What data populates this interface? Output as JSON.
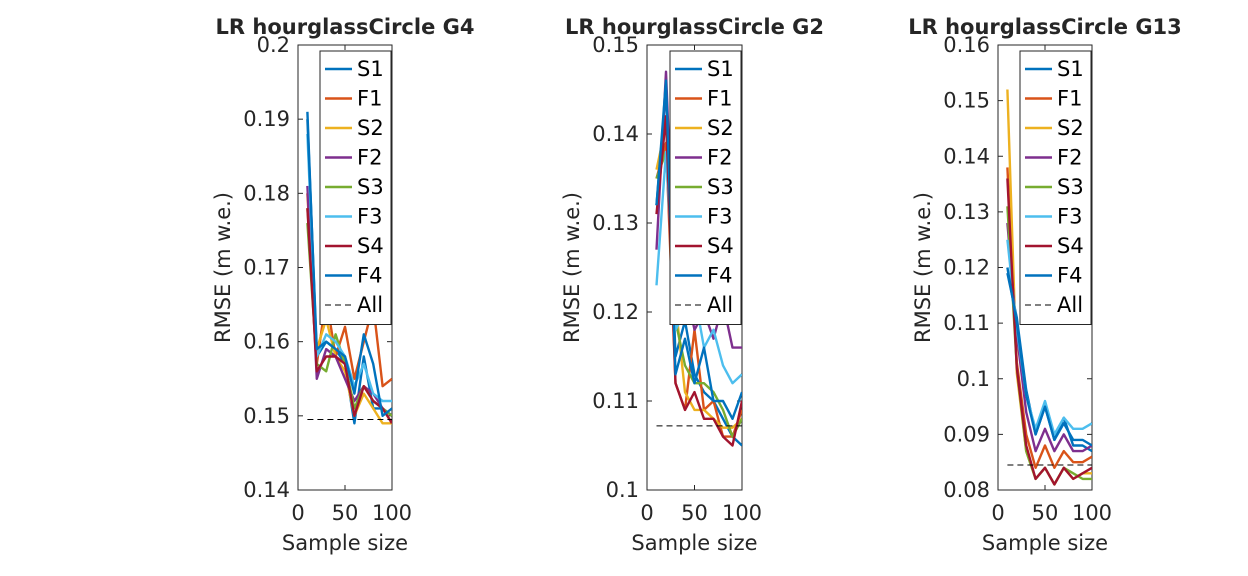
{
  "figure": {
    "background": "#ffffff"
  },
  "legend_entries": [
    {
      "label": "S1",
      "color": "#0072BD",
      "dashed": false
    },
    {
      "label": "F1",
      "color": "#D95319",
      "dashed": false
    },
    {
      "label": "S2",
      "color": "#EDB120",
      "dashed": false
    },
    {
      "label": "F2",
      "color": "#7E2F8E",
      "dashed": false
    },
    {
      "label": "S3",
      "color": "#77AC30",
      "dashed": false
    },
    {
      "label": "F3",
      "color": "#4DBEEE",
      "dashed": false
    },
    {
      "label": "S4",
      "color": "#A2142F",
      "dashed": false
    },
    {
      "label": "F4",
      "color": "#0072BD",
      "dashed": false
    },
    {
      "label": "All",
      "color": "#000000",
      "dashed": true
    }
  ],
  "chart_data": [
    {
      "type": "line",
      "title": "LR hourglassCircle G4",
      "xlabel": "Sample size",
      "ylabel": "RMSE (m w.e.)",
      "xlim": [
        0,
        100
      ],
      "ylim": [
        0.14,
        0.2
      ],
      "xticks": [
        0,
        50,
        100
      ],
      "xtick_labels": [
        "0",
        "50",
        "100"
      ],
      "yticks": [
        0.14,
        0.15,
        0.16,
        0.17,
        0.18,
        0.19,
        0.2
      ],
      "ytick_labels": [
        "0.14",
        "0.15",
        "0.16",
        "0.17",
        "0.18",
        "0.19",
        "0.2"
      ],
      "legend_position": "top-right",
      "x": [
        10,
        20,
        30,
        40,
        50,
        60,
        70,
        80,
        90,
        100
      ],
      "series": [
        {
          "name": "S1",
          "values": [
            0.191,
            0.158,
            0.16,
            0.159,
            0.157,
            0.149,
            0.158,
            0.151,
            0.151,
            0.15
          ]
        },
        {
          "name": "F1",
          "values": [
            0.18,
            0.157,
            0.166,
            0.158,
            0.162,
            0.155,
            0.16,
            0.165,
            0.154,
            0.155
          ]
        },
        {
          "name": "S2",
          "values": [
            0.178,
            0.159,
            0.163,
            0.158,
            0.156,
            0.15,
            0.153,
            0.151,
            0.149,
            0.149
          ]
        },
        {
          "name": "F2",
          "values": [
            0.181,
            0.155,
            0.159,
            0.158,
            0.155,
            0.152,
            0.154,
            0.153,
            0.151,
            0.15
          ]
        },
        {
          "name": "S3",
          "values": [
            0.176,
            0.157,
            0.156,
            0.161,
            0.157,
            0.151,
            0.154,
            0.152,
            0.151,
            0.15
          ]
        },
        {
          "name": "F3",
          "values": [
            0.188,
            0.158,
            0.161,
            0.16,
            0.158,
            0.154,
            0.157,
            0.153,
            0.152,
            0.152
          ]
        },
        {
          "name": "S4",
          "values": [
            0.178,
            0.156,
            0.158,
            0.158,
            0.157,
            0.15,
            0.154,
            0.152,
            0.151,
            0.149
          ]
        },
        {
          "name": "F4",
          "values": [
            0.19,
            0.159,
            0.16,
            0.159,
            0.158,
            0.153,
            0.161,
            0.157,
            0.15,
            0.151
          ]
        },
        {
          "name": "All",
          "values": [
            0.1495,
            0.1495,
            0.1495,
            0.1495,
            0.1495,
            0.1495,
            0.1495,
            0.1495,
            0.1495,
            0.1495
          ]
        }
      ]
    },
    {
      "type": "line",
      "title": "LR hourglassCircle G2",
      "xlabel": "Sample size",
      "ylabel": "RMSE (m w.e.)",
      "xlim": [
        0,
        100
      ],
      "ylim": [
        0.1,
        0.15
      ],
      "xticks": [
        0,
        50,
        100
      ],
      "xtick_labels": [
        "0",
        "50",
        "100"
      ],
      "yticks": [
        0.1,
        0.11,
        0.12,
        0.13,
        0.14,
        0.15
      ],
      "ytick_labels": [
        "0.1",
        "0.11",
        "0.12",
        "0.13",
        "0.14",
        "0.15"
      ],
      "legend_position": "top-right",
      "x": [
        10,
        20,
        30,
        40,
        50,
        60,
        70,
        80,
        90,
        100
      ],
      "series": [
        {
          "name": "S1",
          "values": [
            0.132,
            0.145,
            0.115,
            0.119,
            0.113,
            0.111,
            0.11,
            0.108,
            0.106,
            0.105
          ]
        },
        {
          "name": "F1",
          "values": [
            0.135,
            0.139,
            0.112,
            0.109,
            0.118,
            0.109,
            0.11,
            0.106,
            0.106,
            0.109
          ]
        },
        {
          "name": "S2",
          "values": [
            0.136,
            0.141,
            0.121,
            0.111,
            0.109,
            0.109,
            0.108,
            0.107,
            0.107,
            0.108
          ]
        },
        {
          "name": "F2",
          "values": [
            0.127,
            0.147,
            0.12,
            0.123,
            0.118,
            0.12,
            0.117,
            0.121,
            0.116,
            0.116
          ]
        },
        {
          "name": "S3",
          "values": [
            0.135,
            0.138,
            0.119,
            0.114,
            0.112,
            0.112,
            0.111,
            0.109,
            0.106,
            0.108
          ]
        },
        {
          "name": "F3",
          "values": [
            0.123,
            0.138,
            0.118,
            0.12,
            0.122,
            0.116,
            0.118,
            0.114,
            0.112,
            0.113
          ]
        },
        {
          "name": "S4",
          "values": [
            0.131,
            0.142,
            0.112,
            0.109,
            0.111,
            0.108,
            0.108,
            0.106,
            0.105,
            0.11
          ]
        },
        {
          "name": "F4",
          "values": [
            0.132,
            0.146,
            0.113,
            0.117,
            0.112,
            0.116,
            0.11,
            0.11,
            0.108,
            0.111
          ]
        },
        {
          "name": "All",
          "values": [
            0.1072,
            0.1072,
            0.1072,
            0.1072,
            0.1072,
            0.1072,
            0.1072,
            0.1072,
            0.1072,
            0.1072
          ]
        }
      ]
    },
    {
      "type": "line",
      "title": "LR hourglassCircle G13",
      "xlabel": "Sample size",
      "ylabel": "RMSE (m w.e.)",
      "xlim": [
        0,
        100
      ],
      "ylim": [
        0.08,
        0.16
      ],
      "xticks": [
        0,
        50,
        100
      ],
      "xtick_labels": [
        "0",
        "50",
        "100"
      ],
      "yticks": [
        0.08,
        0.09,
        0.1,
        0.11,
        0.12,
        0.13,
        0.14,
        0.15,
        0.16
      ],
      "ytick_labels": [
        "0.08",
        "0.09",
        "0.1",
        "0.11",
        "0.12",
        "0.13",
        "0.14",
        "0.15",
        "0.16"
      ],
      "legend_position": "top-right",
      "x": [
        10,
        20,
        30,
        40,
        50,
        60,
        70,
        80,
        90,
        100
      ],
      "series": [
        {
          "name": "S1",
          "values": [
            0.119,
            0.111,
            0.098,
            0.09,
            0.095,
            0.089,
            0.093,
            0.088,
            0.088,
            0.087
          ]
        },
        {
          "name": "F1",
          "values": [
            0.138,
            0.103,
            0.09,
            0.084,
            0.088,
            0.084,
            0.087,
            0.085,
            0.085,
            0.086
          ]
        },
        {
          "name": "S2",
          "values": [
            0.152,
            0.101,
            0.087,
            0.082,
            0.084,
            0.081,
            0.084,
            0.082,
            0.083,
            0.083
          ]
        },
        {
          "name": "F2",
          "values": [
            0.128,
            0.108,
            0.094,
            0.087,
            0.091,
            0.087,
            0.09,
            0.087,
            0.087,
            0.088
          ]
        },
        {
          "name": "S3",
          "values": [
            0.131,
            0.102,
            0.087,
            0.082,
            0.084,
            0.081,
            0.084,
            0.083,
            0.082,
            0.082
          ]
        },
        {
          "name": "F3",
          "values": [
            0.125,
            0.109,
            0.097,
            0.091,
            0.096,
            0.09,
            0.093,
            0.091,
            0.091,
            0.092
          ]
        },
        {
          "name": "S4",
          "values": [
            0.136,
            0.102,
            0.088,
            0.082,
            0.084,
            0.081,
            0.084,
            0.082,
            0.083,
            0.084
          ]
        },
        {
          "name": "F4",
          "values": [
            0.12,
            0.11,
            0.097,
            0.09,
            0.095,
            0.089,
            0.092,
            0.089,
            0.089,
            0.088
          ]
        },
        {
          "name": "All",
          "values": [
            0.0845,
            0.0845,
            0.0845,
            0.0845,
            0.0845,
            0.0845,
            0.0845,
            0.0845,
            0.0845,
            0.0845
          ]
        }
      ]
    }
  ]
}
